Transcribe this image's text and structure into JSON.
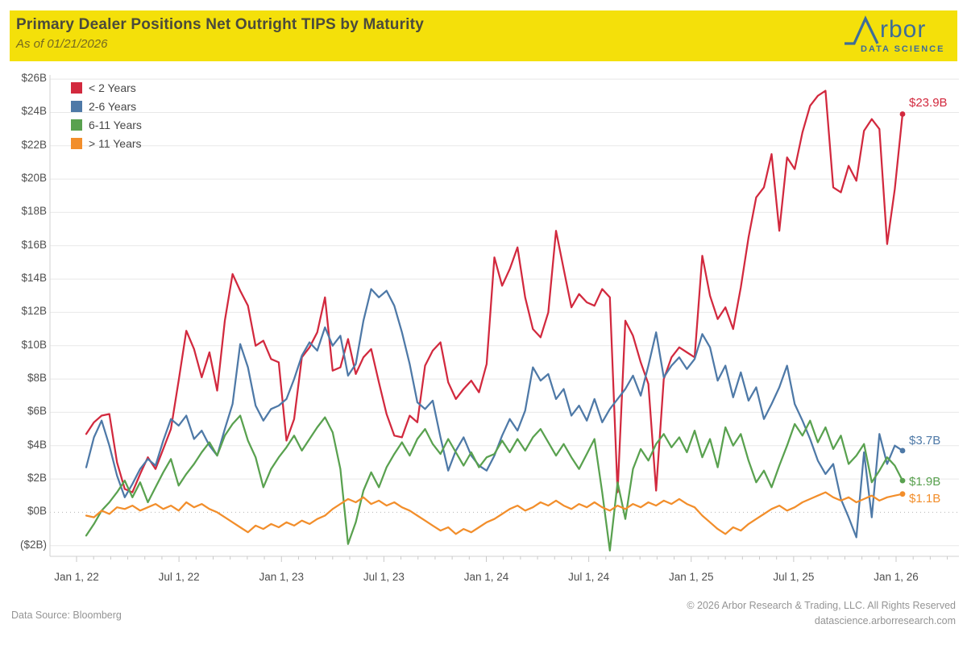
{
  "header": {
    "title": "Primary Dealer Positions Net Outright TIPS by Maturity",
    "subtitle": "As of 01/21/2026",
    "banner_color": "#f4e00a",
    "logo": {
      "word_remainder": "rbor",
      "tagline": "DATA SCIENCE",
      "color": "#3e6d98",
      "mark": "peak-line-A"
    }
  },
  "footer": {
    "source": "Data Source: Bloomberg",
    "copyright": "© 2026 Arbor Research & Trading, LLC. All Rights Reserved",
    "website": "datascience.arborresearch.com"
  },
  "chart_data": {
    "type": "line",
    "title": "Primary Dealer Positions Net Outright TIPS by Maturity",
    "as_of": "01/21/2026",
    "x_description": "Weekly observations, Jan 2022 through Jan 21, 2026",
    "x_tick_labels": [
      "Jan 1, 22",
      "Jul 1, 22",
      "Jan 1, 23",
      "Jul 1, 23",
      "Jan 1, 24",
      "Jul 1, 24",
      "Jan 1, 25",
      "Jul 1, 25",
      "Jan 1, 26"
    ],
    "y_tick_values": [
      26,
      24,
      22,
      20,
      18,
      16,
      14,
      12,
      10,
      8,
      6,
      4,
      2,
      0,
      -2
    ],
    "y_tick_labels": [
      "$26B",
      "$24B",
      "$22B",
      "$20B",
      "$18B",
      "$16B",
      "$14B",
      "$12B",
      "$10B",
      "$8B",
      "$6B",
      "$4B",
      "$2B",
      "$0B",
      "($2B)"
    ],
    "ylim": [
      -2,
      26
    ],
    "grid": true,
    "zero_line": "dotted",
    "legend_position": "top-left",
    "units": "billions USD",
    "series": [
      {
        "name": "< 2 Years",
        "color": "#d2293e",
        "end_label": "$23.9B",
        "end_value": 23.9,
        "values": [
          4.7,
          5.4,
          5.8,
          5.9,
          3.0,
          1.4,
          1.2,
          2.3,
          3.3,
          2.6,
          3.8,
          5.0,
          7.9,
          10.9,
          9.8,
          8.1,
          9.6,
          7.3,
          11.5,
          14.3,
          13.3,
          12.4,
          10.0,
          10.3,
          9.2,
          9.0,
          4.3,
          5.6,
          9.3,
          9.9,
          10.8,
          12.9,
          8.5,
          8.7,
          10.4,
          8.3,
          9.3,
          9.8,
          7.8,
          5.9,
          4.6,
          4.5,
          5.8,
          5.4,
          8.8,
          9.7,
          10.2,
          7.8,
          6.8,
          7.4,
          7.9,
          7.2,
          8.9,
          15.3,
          13.6,
          14.6,
          15.9,
          12.9,
          11.0,
          10.5,
          12.0,
          16.9,
          14.6,
          12.3,
          13.1,
          12.6,
          12.4,
          13.4,
          12.9,
          1.2,
          11.5,
          10.6,
          9.0,
          7.7,
          1.3,
          8.0,
          9.3,
          9.9,
          9.6,
          9.3,
          15.4,
          13.0,
          11.6,
          12.3,
          11.0,
          13.5,
          16.5,
          18.9,
          19.5,
          21.5,
          16.9,
          21.3,
          20.6,
          22.8,
          24.4,
          25.0,
          25.3,
          19.5,
          19.2,
          20.8,
          19.9,
          22.9,
          23.6,
          23.0,
          16.1,
          19.4,
          23.9
        ]
      },
      {
        "name": "2-6 Years",
        "color": "#4e79a7",
        "end_label": "$3.7B",
        "end_value": 3.7,
        "values": [
          2.7,
          4.5,
          5.5,
          4.0,
          2.2,
          0.9,
          1.7,
          2.6,
          3.2,
          2.8,
          4.3,
          5.6,
          5.2,
          5.8,
          4.4,
          4.9,
          4.0,
          3.4,
          5.0,
          6.5,
          10.1,
          8.7,
          6.4,
          5.5,
          6.2,
          6.4,
          6.8,
          8.0,
          9.4,
          10.2,
          9.7,
          11.1,
          10.0,
          10.6,
          8.2,
          8.9,
          11.5,
          13.4,
          12.9,
          13.3,
          12.4,
          10.8,
          8.9,
          6.6,
          6.2,
          6.7,
          4.5,
          2.5,
          3.7,
          4.5,
          3.4,
          2.8,
          2.5,
          3.4,
          4.6,
          5.6,
          4.9,
          6.1,
          8.7,
          7.9,
          8.3,
          6.8,
          7.4,
          5.8,
          6.4,
          5.5,
          6.8,
          5.4,
          6.2,
          6.8,
          7.4,
          8.2,
          7.0,
          8.8,
          10.8,
          8.1,
          8.8,
          9.3,
          8.6,
          9.2,
          10.7,
          9.9,
          7.9,
          8.8,
          6.9,
          8.4,
          6.7,
          7.5,
          5.6,
          6.5,
          7.5,
          8.8,
          6.5,
          5.5,
          4.4,
          3.1,
          2.3,
          2.9,
          0.8,
          -0.3,
          -1.5,
          3.6,
          -0.3,
          4.7,
          2.9,
          4.0,
          3.7
        ]
      },
      {
        "name": "6-11 Years",
        "color": "#59a14f",
        "end_label": "$1.9B",
        "end_value": 1.9,
        "values": [
          -1.4,
          -0.7,
          0.1,
          0.6,
          1.2,
          1.9,
          0.9,
          1.8,
          0.6,
          1.5,
          2.4,
          3.2,
          1.6,
          2.3,
          2.9,
          3.6,
          4.2,
          3.4,
          4.6,
          5.3,
          5.8,
          4.3,
          3.3,
          1.5,
          2.6,
          3.3,
          3.9,
          4.6,
          3.7,
          4.4,
          5.1,
          5.7,
          4.8,
          2.6,
          -1.9,
          -0.6,
          1.3,
          2.4,
          1.5,
          2.7,
          3.5,
          4.2,
          3.4,
          4.4,
          5.0,
          4.1,
          3.5,
          4.4,
          3.6,
          2.8,
          3.6,
          2.7,
          3.3,
          3.5,
          4.3,
          3.6,
          4.4,
          3.7,
          4.5,
          5.0,
          4.2,
          3.4,
          4.1,
          3.3,
          2.6,
          3.5,
          4.4,
          1.2,
          -2.3,
          1.8,
          -0.4,
          2.6,
          3.8,
          3.1,
          4.1,
          4.7,
          3.9,
          4.5,
          3.6,
          4.9,
          3.3,
          4.4,
          2.7,
          5.1,
          4.0,
          4.7,
          3.1,
          1.8,
          2.5,
          1.5,
          2.8,
          4.0,
          5.3,
          4.6,
          5.5,
          4.2,
          5.1,
          3.8,
          4.6,
          2.9,
          3.4,
          4.1,
          1.8,
          2.5,
          3.3,
          2.8,
          1.9
        ]
      },
      {
        "name": "> 11 Years",
        "color": "#f28e2b",
        "end_label": "$1.1B",
        "end_value": 1.1,
        "values": [
          -0.2,
          -0.3,
          0.1,
          -0.1,
          0.3,
          0.2,
          0.4,
          0.1,
          0.3,
          0.5,
          0.2,
          0.4,
          0.1,
          0.6,
          0.3,
          0.5,
          0.2,
          0.0,
          -0.3,
          -0.6,
          -0.9,
          -1.2,
          -0.8,
          -1.0,
          -0.7,
          -0.9,
          -0.6,
          -0.8,
          -0.5,
          -0.7,
          -0.4,
          -0.2,
          0.2,
          0.5,
          0.8,
          0.6,
          0.9,
          0.5,
          0.7,
          0.4,
          0.6,
          0.3,
          0.1,
          -0.2,
          -0.5,
          -0.8,
          -1.1,
          -0.9,
          -1.3,
          -1.0,
          -1.2,
          -0.9,
          -0.6,
          -0.4,
          -0.1,
          0.2,
          0.4,
          0.1,
          0.3,
          0.6,
          0.4,
          0.7,
          0.4,
          0.2,
          0.5,
          0.3,
          0.6,
          0.3,
          0.1,
          0.4,
          0.2,
          0.5,
          0.3,
          0.6,
          0.4,
          0.7,
          0.5,
          0.8,
          0.5,
          0.3,
          -0.2,
          -0.6,
          -1.0,
          -1.3,
          -0.9,
          -1.1,
          -0.7,
          -0.4,
          -0.1,
          0.2,
          0.4,
          0.1,
          0.3,
          0.6,
          0.8,
          1.0,
          1.2,
          0.9,
          0.7,
          0.9,
          0.6,
          0.8,
          1.0,
          0.7,
          0.9,
          1.0,
          1.1
        ]
      }
    ]
  }
}
